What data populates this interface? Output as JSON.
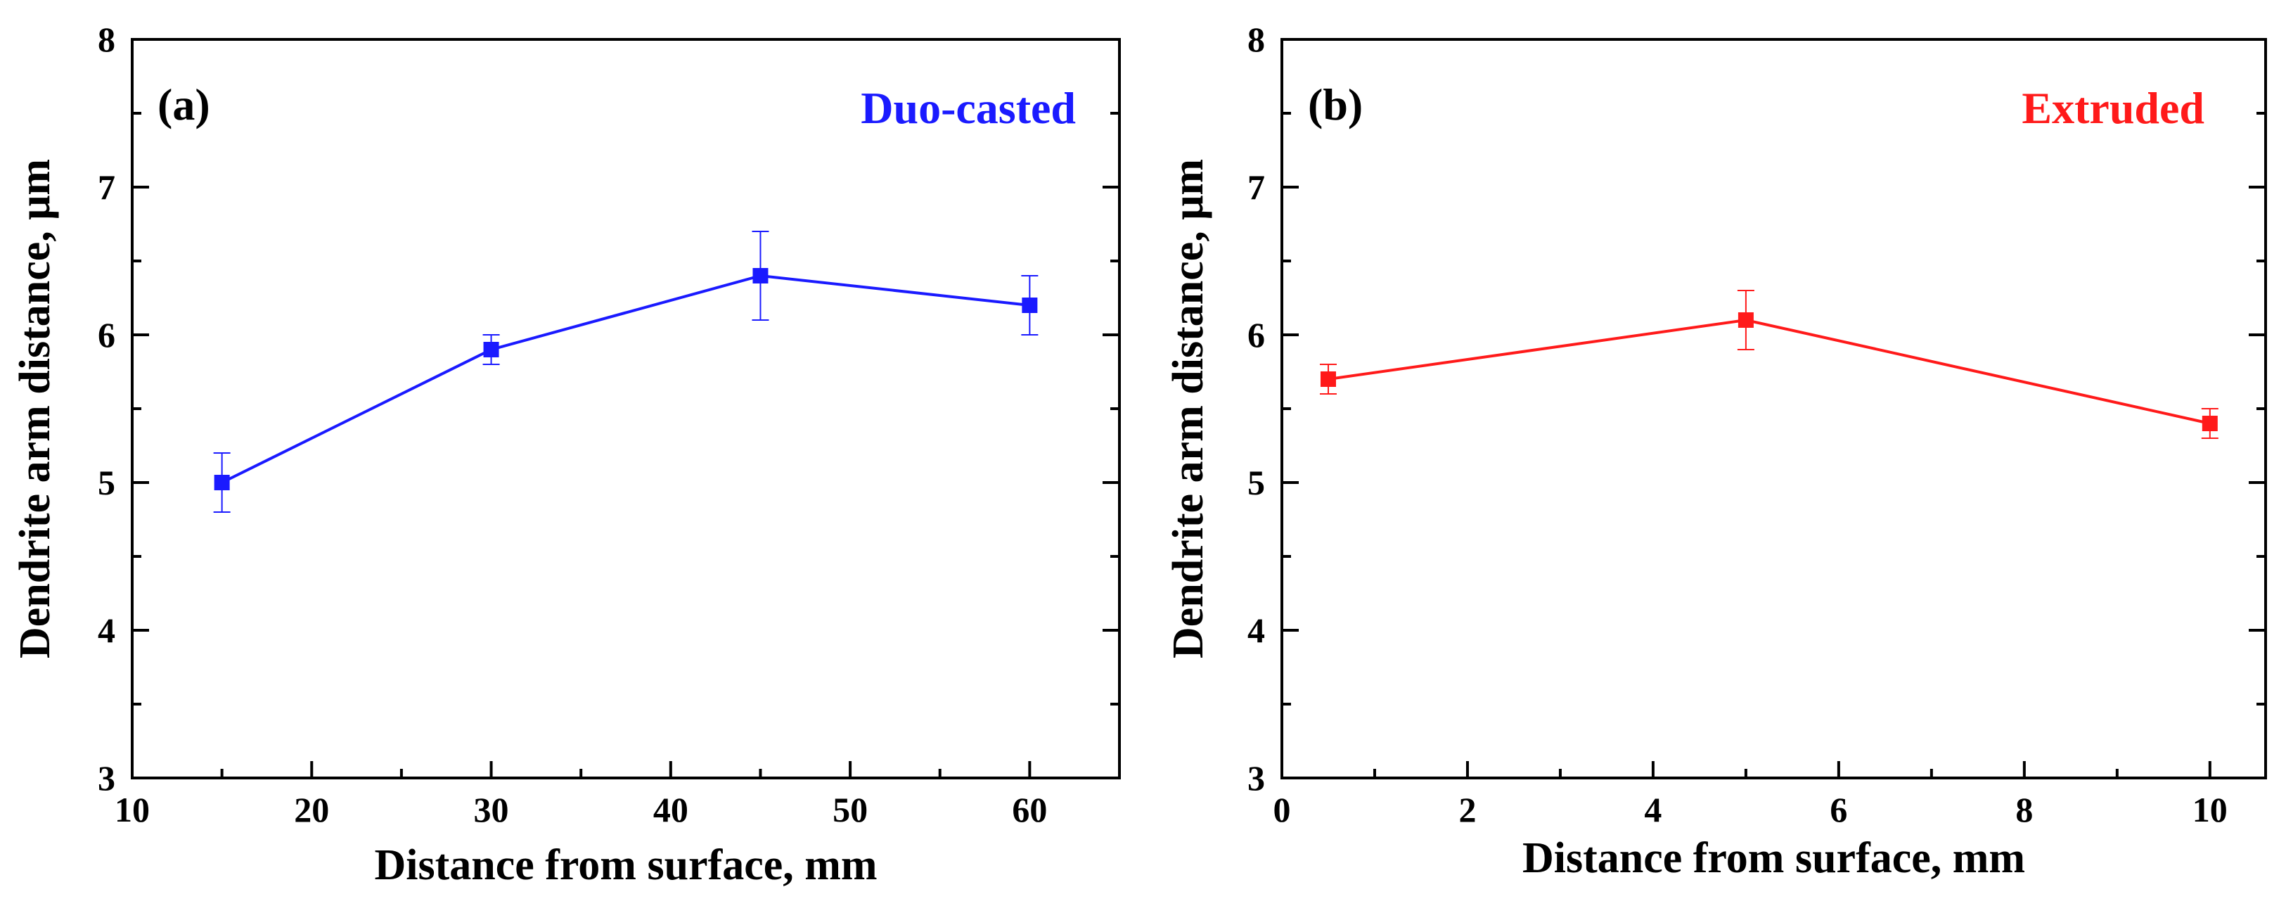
{
  "chart_data": [
    {
      "type": "line",
      "panel_label": "(a)",
      "xlabel": "Distance from surface, mm",
      "ylabel": "Dendrite arm distance, μm",
      "xlim": [
        10,
        65
      ],
      "ylim": [
        3,
        8
      ],
      "xticks": [
        10,
        20,
        30,
        40,
        50,
        60
      ],
      "yticks": [
        3,
        4,
        5,
        6,
        7,
        8
      ],
      "grid": false,
      "series": [
        {
          "name": "Duo-casted",
          "color": "#1a1aff",
          "marker": "square",
          "x": [
            15,
            30,
            45,
            60
          ],
          "y": [
            5.0,
            5.9,
            6.4,
            6.2
          ],
          "yerr": [
            0.2,
            0.1,
            0.3,
            0.2
          ]
        }
      ]
    },
    {
      "type": "line",
      "panel_label": "(b)",
      "xlabel": "Distance from surface, mm",
      "ylabel": "Dendrite arm distance, μm",
      "xlim": [
        0,
        10.6
      ],
      "ylim": [
        3,
        8
      ],
      "xticks": [
        0,
        2,
        4,
        6,
        8,
        10
      ],
      "yticks": [
        3,
        4,
        5,
        6,
        7,
        8
      ],
      "grid": false,
      "series": [
        {
          "name": "Extruded",
          "color": "#ff1a1a",
          "marker": "square",
          "x": [
            0.5,
            5,
            10
          ],
          "y": [
            5.7,
            6.1,
            5.4
          ],
          "yerr": [
            0.1,
            0.2,
            0.1
          ]
        }
      ]
    }
  ]
}
